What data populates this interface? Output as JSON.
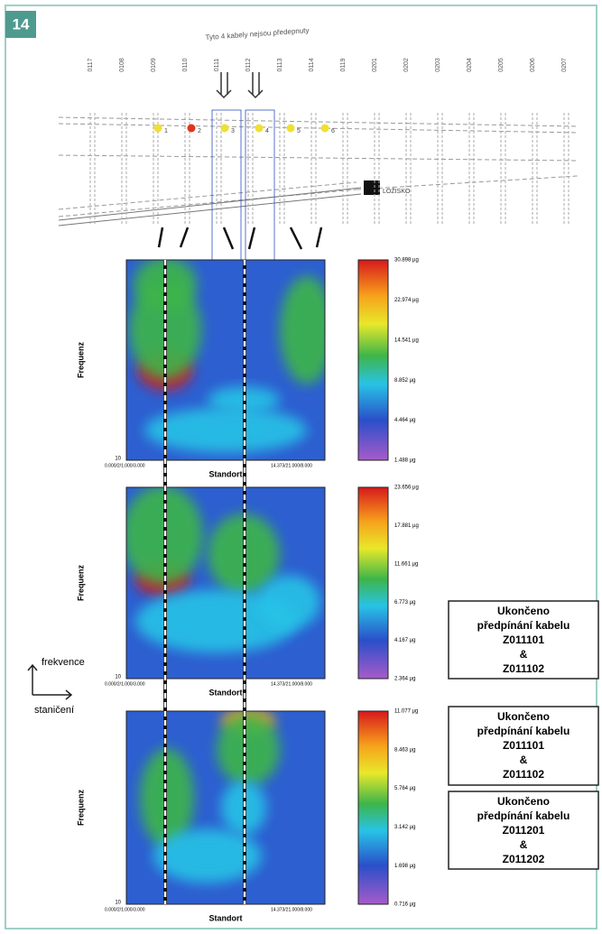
{
  "figure_number": "14",
  "plan": {
    "note": "Tyto 4 kabely nejsou předepnuty",
    "cables": [
      "0117",
      "0108",
      "0109",
      "0110",
      "0111",
      "0112",
      "0113",
      "0114",
      "0119",
      "0201",
      "0202",
      "0203",
      "0204",
      "0205",
      "0206",
      "0207"
    ],
    "markers": [
      "1",
      "2",
      "3",
      "4",
      "5",
      "6"
    ],
    "bearing": "LOŽISKO"
  },
  "panels": [
    {
      "y_label": "Frequenz",
      "x_label": "Standort",
      "y_tick": "10",
      "x_tick_left": "0.000/2/1.000/3.000",
      "x_tick_right": "14.373/21.000/8.000",
      "colorbar": [
        "30.898 µg",
        "22.974 µg",
        "14.541 µg",
        "8.852 µg",
        "4.464 µg",
        "1.488 µg"
      ]
    },
    {
      "y_label": "Frequenz",
      "x_label": "Standort",
      "y_tick": "10",
      "x_tick_left": "0.000/2/1.000/3.000",
      "x_tick_right": "14.373/21.000/8.000",
      "colorbar": [
        "23.656 µg",
        "17.881 µg",
        "11.661 µg",
        "6.773 µg",
        "4.167 µg",
        "2.364 µg"
      ]
    },
    {
      "y_label": "Frequenz",
      "x_label": "Standort",
      "y_tick": "10",
      "x_tick_left": "0.000/2/1.000/3.000",
      "x_tick_right": "14.373/21.000/8.000",
      "colorbar": [
        "11.077 µg",
        "8.463 µg",
        "5.764 µg",
        "3.142 µg",
        "1.698 µg",
        "0.716 µg"
      ]
    }
  ],
  "axes_legend": {
    "y": "frekvence",
    "x": "staničení"
  },
  "notes": [
    {
      "lines": [
        "Ukončeno",
        "předpínání kabelu",
        "Z011101",
        "&",
        "Z011102"
      ]
    },
    {
      "lines": [
        "Ukončeno",
        "předpínání kabelu",
        "Z011101",
        "&",
        "Z011102"
      ]
    },
    {
      "lines": [
        "Ukončeno",
        "předpínání kabelu",
        "Z011201",
        "&",
        "Z011202"
      ]
    }
  ]
}
